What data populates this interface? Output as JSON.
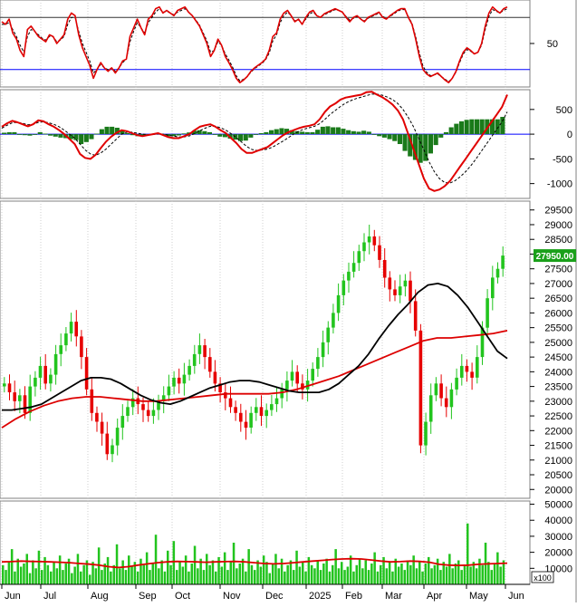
{
  "colors": {
    "up": "#22c41e",
    "down": "#e60000",
    "rsi_line": "#e00000",
    "rsi_signal": "#000000",
    "rsi_level_high": "#333333",
    "rsi_level_low": "#0000ff",
    "macd_line": "#e00000",
    "macd_signal": "#000000",
    "macd_hist": "#1a7a1a",
    "ma_short": "#000000",
    "ma_long": "#dd0000",
    "volume_bar": "#22c41e",
    "volume_ma": "#dd0000",
    "price_badge_bg": "#1aa01a",
    "price_badge_text": "#ffffff",
    "grid": "#cfcfcf",
    "panel_border": "#808080"
  },
  "chart_data": [
    {
      "type": "line",
      "panel": "rsi",
      "ylim": [
        0,
        100
      ],
      "y_ticks": [
        "50"
      ],
      "levels": [
        80,
        20
      ],
      "grid": true,
      "series": [
        {
          "role": "rsi",
          "values": [
            75,
            72,
            78,
            62,
            55,
            42,
            35,
            66,
            70,
            64,
            58,
            55,
            52,
            60,
            58,
            50,
            55,
            60,
            78,
            85,
            82,
            60,
            45,
            35,
            25,
            10,
            20,
            28,
            22,
            18,
            22,
            16,
            22,
            30,
            32,
            58,
            68,
            78,
            68,
            60,
            78,
            82,
            90,
            92,
            85,
            88,
            85,
            82,
            88,
            90,
            92,
            86,
            82,
            76,
            70,
            60,
            50,
            35,
            42,
            55,
            48,
            35,
            28,
            20,
            10,
            5,
            8,
            12,
            18,
            22,
            25,
            28,
            32,
            42,
            58,
            62,
            78,
            85,
            88,
            82,
            75,
            78,
            72,
            80,
            86,
            88,
            82,
            80,
            84,
            86,
            88,
            90,
            88,
            86,
            80,
            75,
            80,
            82,
            78,
            75,
            80,
            82,
            84,
            86,
            80,
            78,
            82,
            85,
            88,
            90,
            90,
            80,
            72,
            55,
            35,
            20,
            15,
            12,
            14,
            16,
            12,
            8,
            5,
            10,
            18,
            30,
            40,
            45,
            42,
            38,
            40,
            50,
            70,
            85,
            92,
            88,
            85,
            90,
            92
          ]
        },
        {
          "role": "signal",
          "values": [
            72,
            72,
            74,
            66,
            58,
            48,
            40,
            58,
            66,
            64,
            60,
            56,
            54,
            58,
            58,
            52,
            54,
            58,
            72,
            80,
            80,
            64,
            50,
            40,
            30,
            16,
            20,
            26,
            22,
            20,
            22,
            18,
            22,
            28,
            32,
            52,
            64,
            74,
            68,
            62,
            74,
            80,
            86,
            90,
            86,
            87,
            85,
            83,
            86,
            88,
            90,
            86,
            82,
            77,
            71,
            62,
            53,
            40,
            42,
            52,
            48,
            38,
            31,
            23,
            13,
            7,
            9,
            12,
            17,
            21,
            24,
            27,
            31,
            39,
            53,
            60,
            74,
            82,
            86,
            82,
            76,
            77,
            73,
            78,
            84,
            86,
            82,
            80,
            83,
            85,
            87,
            89,
            88,
            86,
            81,
            77,
            79,
            81,
            78,
            76,
            79,
            81,
            83,
            85,
            81,
            79,
            81,
            84,
            87,
            89,
            89,
            81,
            73,
            58,
            39,
            24,
            17,
            13,
            14,
            15,
            12,
            9,
            6,
            10,
            17,
            28,
            38,
            43,
            41,
            38,
            40,
            48,
            66,
            81,
            89,
            87,
            85,
            88,
            90
          ]
        }
      ]
    },
    {
      "type": "line",
      "panel": "macd",
      "ylim": [
        -1300,
        900
      ],
      "y_ticks": [
        "500",
        "0",
        "-500",
        "-1000"
      ],
      "grid": true,
      "series": [
        {
          "role": "macd",
          "values": [
            150,
            220,
            270,
            240,
            200,
            160,
            200,
            280,
            260,
            200,
            150,
            80,
            0,
            -100,
            -200,
            -400,
            -480,
            -500,
            -420,
            -280,
            -150,
            -50,
            30,
            80,
            60,
            20,
            -20,
            -40,
            -20,
            0,
            20,
            -20,
            -60,
            -80,
            -80,
            -40,
            0,
            80,
            150,
            180,
            200,
            150,
            80,
            20,
            -80,
            -180,
            -300,
            -380,
            -380,
            -340,
            -300,
            -260,
            -180,
            -100,
            -20,
            40,
            80,
            120,
            150,
            170,
            200,
            300,
            450,
            560,
            620,
            700,
            740,
            760,
            780,
            800,
            850,
            860,
            800,
            750,
            680,
            600,
            480,
            300,
            0,
            -300,
            -600,
            -900,
            -1100,
            -1150,
            -1120,
            -1050,
            -950,
            -800,
            -650,
            -500,
            -350,
            -200,
            -50,
            100,
            250,
            400,
            550,
            800
          ]
        },
        {
          "role": "signal",
          "values": [
            120,
            180,
            230,
            240,
            220,
            190,
            200,
            240,
            250,
            230,
            200,
            150,
            80,
            0,
            -80,
            -200,
            -320,
            -400,
            -430,
            -380,
            -300,
            -200,
            -100,
            0,
            40,
            40,
            20,
            0,
            -10,
            -5,
            5,
            0,
            -20,
            -40,
            -55,
            -55,
            -35,
            10,
            70,
            120,
            160,
            160,
            130,
            80,
            10,
            -70,
            -160,
            -250,
            -310,
            -330,
            -320,
            -300,
            -260,
            -200,
            -140,
            -70,
            0,
            60,
            100,
            130,
            160,
            210,
            300,
            400,
            480,
            560,
            630,
            680,
            720,
            750,
            780,
            810,
            810,
            790,
            750,
            700,
            620,
            500,
            340,
            150,
            -80,
            -320,
            -560,
            -760,
            -900,
            -980,
            -990,
            -940,
            -860,
            -760,
            -640,
            -500,
            -350,
            -200,
            -50,
            100,
            250,
            450
          ]
        },
        {
          "role": "histogram",
          "values": [
            30,
            40,
            40,
            0,
            -20,
            -30,
            0,
            40,
            10,
            -30,
            -50,
            -70,
            -80,
            -100,
            -120,
            -200,
            -160,
            -100,
            10,
            100,
            150,
            150,
            130,
            80,
            20,
            -20,
            -40,
            -40,
            -10,
            5,
            15,
            -20,
            -40,
            -40,
            -25,
            15,
            35,
            70,
            80,
            60,
            40,
            -10,
            -50,
            -60,
            -90,
            -110,
            -140,
            -130,
            -70,
            -10,
            20,
            40,
            80,
            100,
            120,
            110,
            80,
            60,
            50,
            40,
            40,
            90,
            150,
            160,
            140,
            140,
            110,
            80,
            60,
            50,
            70,
            50,
            -10,
            -40,
            -70,
            -100,
            -140,
            -200,
            -340,
            -450,
            -520,
            -580,
            -540,
            -390,
            -220,
            -70,
            40,
            140,
            210,
            260,
            290,
            300,
            300,
            300,
            300,
            300,
            300,
            350
          ]
        }
      ]
    },
    {
      "type": "candlestick",
      "panel": "price",
      "ylim": [
        19700,
        29800
      ],
      "y_ticks": [
        "29500",
        "29000",
        "28500",
        "28000",
        "27500",
        "27000",
        "26500",
        "26000",
        "25500",
        "25000",
        "24500",
        "24000",
        "23500",
        "23000",
        "22500",
        "22000",
        "21500",
        "21000",
        "20500",
        "20000"
      ],
      "last_price_label": "27950.00",
      "x_labels": [
        "Jun",
        "Jul",
        "Aug",
        "Sep",
        "Oct",
        "Nov",
        "Dec",
        "2025",
        "Feb",
        "Mar",
        "Apr",
        "May",
        "Jun"
      ],
      "grid": true,
      "close": [
        23600,
        23300,
        23000,
        23200,
        22600,
        23500,
        23800,
        24200,
        23600,
        23900,
        24600,
        24900,
        25300,
        25700,
        25200,
        24500,
        23400,
        22600,
        22300,
        21900,
        21200,
        21500,
        22100,
        22500,
        22800,
        23100,
        22900,
        22700,
        22500,
        22700,
        23000,
        23200,
        23500,
        23800,
        23600,
        23900,
        24200,
        24600,
        24900,
        24500,
        24000,
        23600,
        23300,
        23100,
        22800,
        22600,
        22300,
        22100,
        22600,
        22800,
        22500,
        22700,
        22900,
        23100,
        23400,
        23700,
        24000,
        23600,
        23400,
        23700,
        24100,
        24500,
        25000,
        25500,
        26000,
        26600,
        27100,
        27400,
        27700,
        28100,
        28400,
        28600,
        28300,
        27800,
        27200,
        26800,
        26600,
        26900,
        27100,
        26400,
        25400,
        21500,
        22300,
        23200,
        23600,
        23100,
        22800,
        23400,
        23800,
        24200,
        24000,
        23800,
        24500,
        25500,
        26500,
        27200,
        27500,
        27950
      ],
      "moving_averages": [
        {
          "role": "ma_short",
          "values": [
            22700,
            22700,
            22750,
            22800,
            22900,
            23100,
            23300,
            23500,
            23700,
            23800,
            23800,
            23750,
            23600,
            23400,
            23200,
            23050,
            22950,
            22900,
            23000,
            23150,
            23300,
            23450,
            23550,
            23650,
            23700,
            23700,
            23650,
            23550,
            23450,
            23350,
            23300,
            23300,
            23300,
            23400,
            23600,
            23900,
            24200,
            24600,
            25100,
            25550,
            25950,
            26300,
            26700,
            26950,
            27000,
            26900,
            26600,
            26200,
            25700,
            25200,
            24700,
            24450
          ]
        },
        {
          "role": "ma_long",
          "values": [
            22100,
            22400,
            22650,
            22850,
            23000,
            23100,
            23150,
            23150,
            23100,
            23050,
            23000,
            23000,
            23050,
            23100,
            23150,
            23200,
            23250,
            23250,
            23250,
            23250,
            23300,
            23400,
            23550,
            23700,
            23850,
            24050,
            24250,
            24450,
            24650,
            24850,
            25050,
            25150,
            25150,
            25200,
            25250,
            25300,
            25400
          ]
        }
      ]
    },
    {
      "type": "bar",
      "panel": "volume",
      "ylim": [
        0,
        52000
      ],
      "y_ticks": [
        "50000",
        "40000",
        "30000",
        "20000",
        "10000"
      ],
      "unit_label": "x100",
      "grid": true,
      "values": [
        12000,
        9000,
        14000,
        22000,
        8000,
        16000,
        11000,
        13000,
        19000,
        7000,
        15000,
        10000,
        21000,
        9000,
        17000,
        12000,
        8000,
        14000,
        10000,
        18000,
        9000,
        13000,
        16000,
        7000,
        11000,
        19000,
        8000,
        12000,
        15000,
        6000,
        14000,
        10000,
        23000,
        9000,
        13000,
        17000,
        8000,
        12000,
        25000,
        10000,
        15000,
        9000,
        18000,
        11000,
        14000,
        8000,
        16000,
        12000,
        20000,
        9000,
        13000,
        31000,
        10000,
        15000,
        8000,
        21000,
        12000,
        27000,
        9000,
        14000,
        11000,
        18000,
        8000,
        13000,
        24000,
        10000,
        16000,
        9000,
        19000,
        12000,
        15000,
        8000,
        17000,
        11000,
        20000,
        9000,
        14000,
        26000,
        10000,
        13000,
        16000,
        8000,
        22000,
        12000,
        9000,
        15000,
        11000,
        18000,
        14000,
        7000,
        13000,
        19000,
        10000,
        16000,
        8000,
        12000,
        15000,
        9000,
        21000,
        11000,
        14000,
        8000,
        17000,
        12000,
        10000,
        15000,
        9000,
        13000,
        16000,
        8000,
        12000,
        22000,
        10000,
        14000,
        9000,
        11000,
        18000,
        8000,
        12000,
        16000,
        10000,
        15000,
        9000,
        13000,
        20000,
        8000,
        12000,
        17000,
        10000,
        14000,
        8000,
        16000,
        11000,
        13000,
        9000,
        15000,
        12000,
        18000,
        10000,
        14000,
        8000,
        13000,
        17000,
        10000,
        12000,
        16000,
        9000,
        14000,
        11000,
        19000,
        10000,
        13000,
        15000,
        9000,
        12000,
        38000,
        11000,
        14000,
        10000,
        16000,
        12000,
        26000,
        14000,
        9000,
        13000,
        20000,
        11000,
        15000
      ],
      "moving_average": {
        "role": "volume_ma",
        "values": [
          14000,
          14200,
          14500,
          14300,
          14200,
          14000,
          13800,
          13500,
          13000,
          12600,
          12000,
          11000,
          10500,
          11000,
          12000,
          12800,
          13500,
          14000,
          14300,
          14200,
          14000,
          13800,
          14000,
          14200,
          14300,
          14000,
          13500,
          13000,
          12800,
          13000,
          13500,
          14000,
          14500,
          15000,
          15500,
          15800,
          16000,
          15800,
          15200,
          14500,
          14000,
          14200,
          14500,
          14300,
          13800,
          12500,
          12000,
          11800,
          12000,
          12500,
          12800,
          13000,
          13200
        ]
      }
    }
  ]
}
